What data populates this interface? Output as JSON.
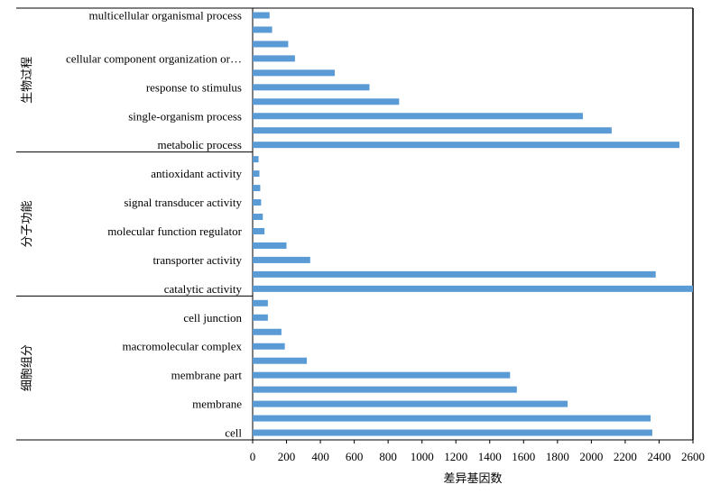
{
  "chart_data": {
    "type": "bar",
    "orientation": "horizontal",
    "xlabel": "差异基因数",
    "xlim": [
      0,
      2600
    ],
    "xticks": [
      0,
      200,
      400,
      600,
      800,
      1000,
      1200,
      1400,
      1600,
      1800,
      2000,
      2200,
      2400,
      2600
    ],
    "grid": false,
    "color": "#5b9bd5",
    "groups": [
      {
        "name": "生物过程",
        "bars": [
          {
            "label": "multicellular organismal process",
            "value": 100
          },
          {
            "label": "",
            "value": 115
          },
          {
            "label": "",
            "value": 210
          },
          {
            "label": "cellular component organization or…",
            "value": 250
          },
          {
            "label": "",
            "value": 485
          },
          {
            "label": "response to stimulus",
            "value": 690
          },
          {
            "label": "",
            "value": 865
          },
          {
            "label": "single-organism process",
            "value": 1950
          },
          {
            "label": "",
            "value": 2120
          },
          {
            "label": "metabolic process",
            "value": 2520
          }
        ]
      },
      {
        "name": "分子功能",
        "bars": [
          {
            "label": "",
            "value": 35
          },
          {
            "label": "antioxidant activity",
            "value": 40
          },
          {
            "label": "",
            "value": 45
          },
          {
            "label": "signal transducer activity",
            "value": 50
          },
          {
            "label": "",
            "value": 60
          },
          {
            "label": "molecular function regulator",
            "value": 70
          },
          {
            "label": "",
            "value": 200
          },
          {
            "label": "transporter activity",
            "value": 340
          },
          {
            "label": "",
            "value": 2380
          },
          {
            "label": "catalytic activity",
            "value": 2600
          }
        ]
      },
      {
        "name": "细胞组分",
        "bars": [
          {
            "label": "",
            "value": 90
          },
          {
            "label": "cell junction",
            "value": 90
          },
          {
            "label": "",
            "value": 170
          },
          {
            "label": "macromolecular complex",
            "value": 190
          },
          {
            "label": "",
            "value": 320
          },
          {
            "label": "membrane part",
            "value": 1520
          },
          {
            "label": "",
            "value": 1560
          },
          {
            "label": "membrane",
            "value": 1860
          },
          {
            "label": "",
            "value": 2350
          },
          {
            "label": "cell",
            "value": 2360
          }
        ]
      }
    ]
  }
}
